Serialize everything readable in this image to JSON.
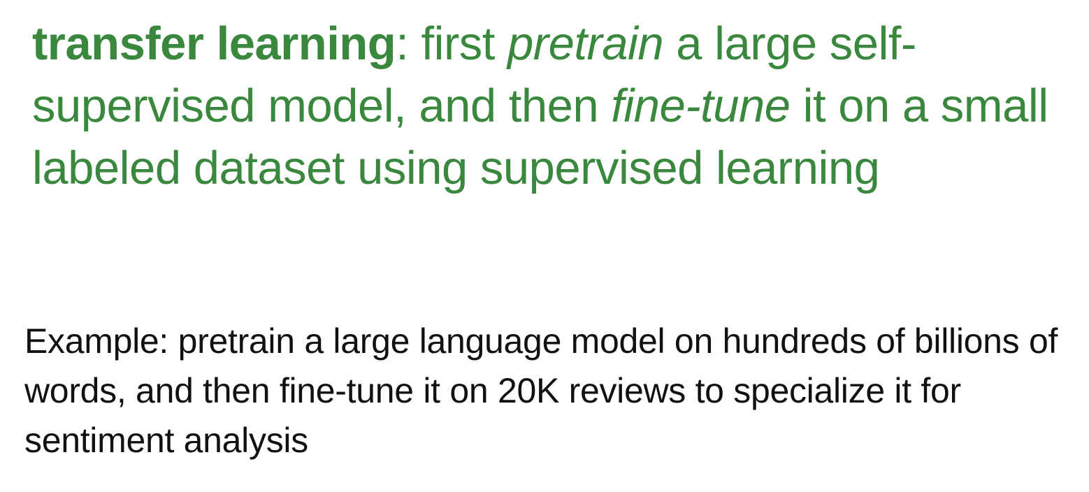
{
  "definition": {
    "term": "transfer learning",
    "colon": ":",
    "part1": " first ",
    "emph1": "pretrain",
    "part2": " a large self-supervised model, and then ",
    "emph2": "fine-tune",
    "part3": " it on a small labeled dataset using supervised learning"
  },
  "example": {
    "text": "Example: pretrain a large language model on hundreds of billions of words, and then fine-tune it on 20K reviews to specialize it for sentiment analysis"
  },
  "colors": {
    "accent": "#3a873e",
    "body_text": "#111111"
  }
}
